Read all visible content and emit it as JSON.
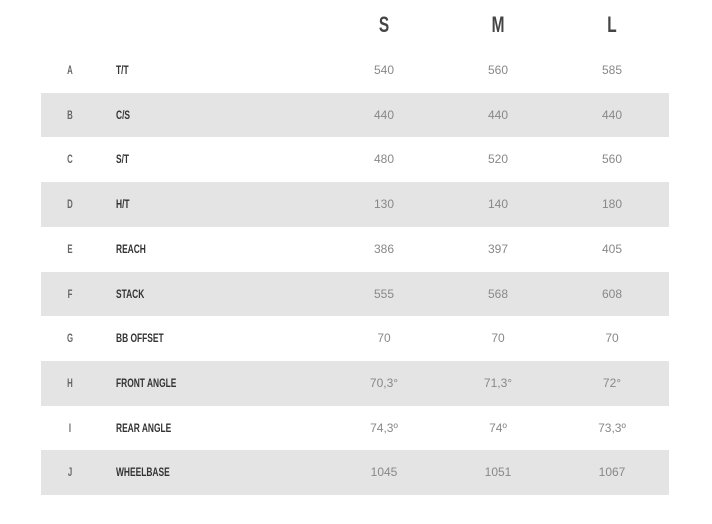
{
  "sizes": [
    "S",
    "M",
    "L"
  ],
  "rows": [
    {
      "letter": "A",
      "label": "T/T",
      "values": [
        "540",
        "560",
        "585"
      ]
    },
    {
      "letter": "B",
      "label": "C/S",
      "values": [
        "440",
        "440",
        "440"
      ]
    },
    {
      "letter": "C",
      "label": "S/T",
      "values": [
        "480",
        "520",
        "560"
      ]
    },
    {
      "letter": "D",
      "label": "H/T",
      "values": [
        "130",
        "140",
        "180"
      ]
    },
    {
      "letter": "E",
      "label": "REACH",
      "values": [
        "386",
        "397",
        "405"
      ]
    },
    {
      "letter": "F",
      "label": "STACK",
      "values": [
        "555",
        "568",
        "608"
      ]
    },
    {
      "letter": "G",
      "label": "BB OFFSET",
      "values": [
        "70",
        "70",
        "70"
      ]
    },
    {
      "letter": "H",
      "label": "FRONT ANGLE",
      "values": [
        "70,3°",
        "71,3°",
        "72°"
      ]
    },
    {
      "letter": "I",
      "label": "REAR ANGLE",
      "values": [
        "74,3º",
        "74º",
        "73,3º"
      ]
    },
    {
      "letter": "J",
      "label": "WHEELBASE",
      "values": [
        "1045",
        "1051",
        "1067"
      ]
    }
  ],
  "colors": {
    "shade": "#e4e4e4",
    "header": "#444444",
    "value": "#888888"
  }
}
